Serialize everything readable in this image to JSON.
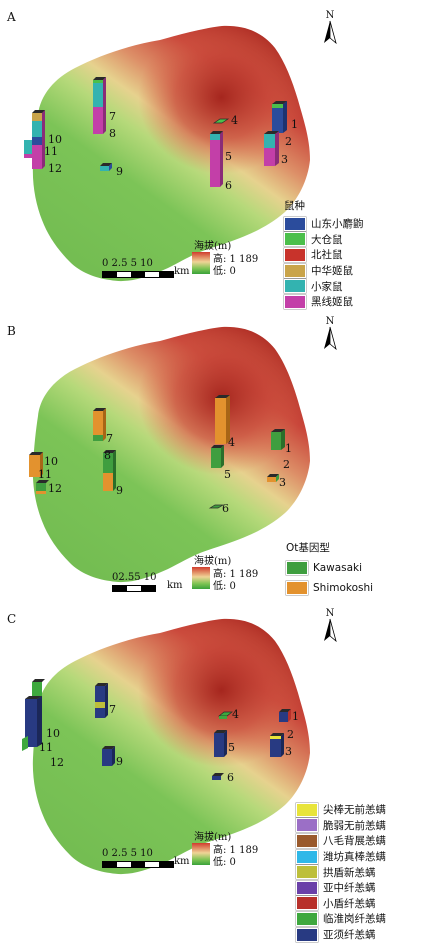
{
  "panels": [
    {
      "letter": "A",
      "north": "N",
      "elevation": {
        "title": "海拔(m)",
        "high": "高: 1 189",
        "low": "低: 0"
      },
      "scale": {
        "ticks": "0 2.5 5    10",
        "unit": "km"
      },
      "legend": {
        "title": "鼠种",
        "items": [
          {
            "label": "山东小麝鼩",
            "color": "#2b4c9c"
          },
          {
            "label": "大仓鼠",
            "color": "#4bbf4b"
          },
          {
            "label": "北社鼠",
            "color": "#c8332b"
          },
          {
            "label": "中华姬鼠",
            "color": "#c9a44a"
          },
          {
            "label": "小家鼠",
            "color": "#33b3b0"
          },
          {
            "label": "黑线姬鼠",
            "color": "#c33fa8"
          }
        ]
      },
      "sites": [
        "1",
        "2",
        "3",
        "4",
        "5",
        "6",
        "7",
        "8",
        "9",
        "10",
        "11",
        "12"
      ]
    },
    {
      "letter": "B",
      "north": "N",
      "elevation": {
        "title": "海拔(m)",
        "high": "高: 1 189",
        "low": "低: 0"
      },
      "scale": {
        "ticks": "02.55 10",
        "unit": "km"
      },
      "legend": {
        "title": "Ot基因型",
        "items": [
          {
            "label": "Kawasaki",
            "color": "#3f9e3f"
          },
          {
            "label": "Shimokoshi",
            "color": "#e3922e"
          }
        ]
      },
      "sites": [
        "1",
        "2",
        "3",
        "4",
        "5",
        "6",
        "7",
        "8",
        "9",
        "10",
        "11",
        "12"
      ]
    },
    {
      "letter": "C",
      "north": "N",
      "elevation": {
        "title": "海拔(m)",
        "high": "高: 1 189",
        "low": "低: 0"
      },
      "scale": {
        "ticks": "0 2.5 5    10",
        "unit": "km"
      },
      "legend": {
        "title": "",
        "items": [
          {
            "label": "尖棒无前恙螨",
            "color": "#e8e43a"
          },
          {
            "label": "脆弱无前恙螨",
            "color": "#9b6fc6"
          },
          {
            "label": "八毛背展恙螨",
            "color": "#9a5a2c"
          },
          {
            "label": "潍坊真棒恙螨",
            "color": "#2fb8e8"
          },
          {
            "label": "拱盾新恙螨",
            "color": "#bdbf3a"
          },
          {
            "label": "亚中纤恙螨",
            "color": "#6a40a8"
          },
          {
            "label": "小盾纤恙螨",
            "color": "#b8302a"
          },
          {
            "label": "临淮岗纤恙螨",
            "color": "#3ea83e"
          },
          {
            "label": "亚须纤恙螨",
            "color": "#283a82"
          }
        ]
      },
      "sites": [
        "1",
        "2",
        "3",
        "4",
        "5",
        "6",
        "7",
        "9",
        "10",
        "11",
        "12"
      ]
    }
  ]
}
